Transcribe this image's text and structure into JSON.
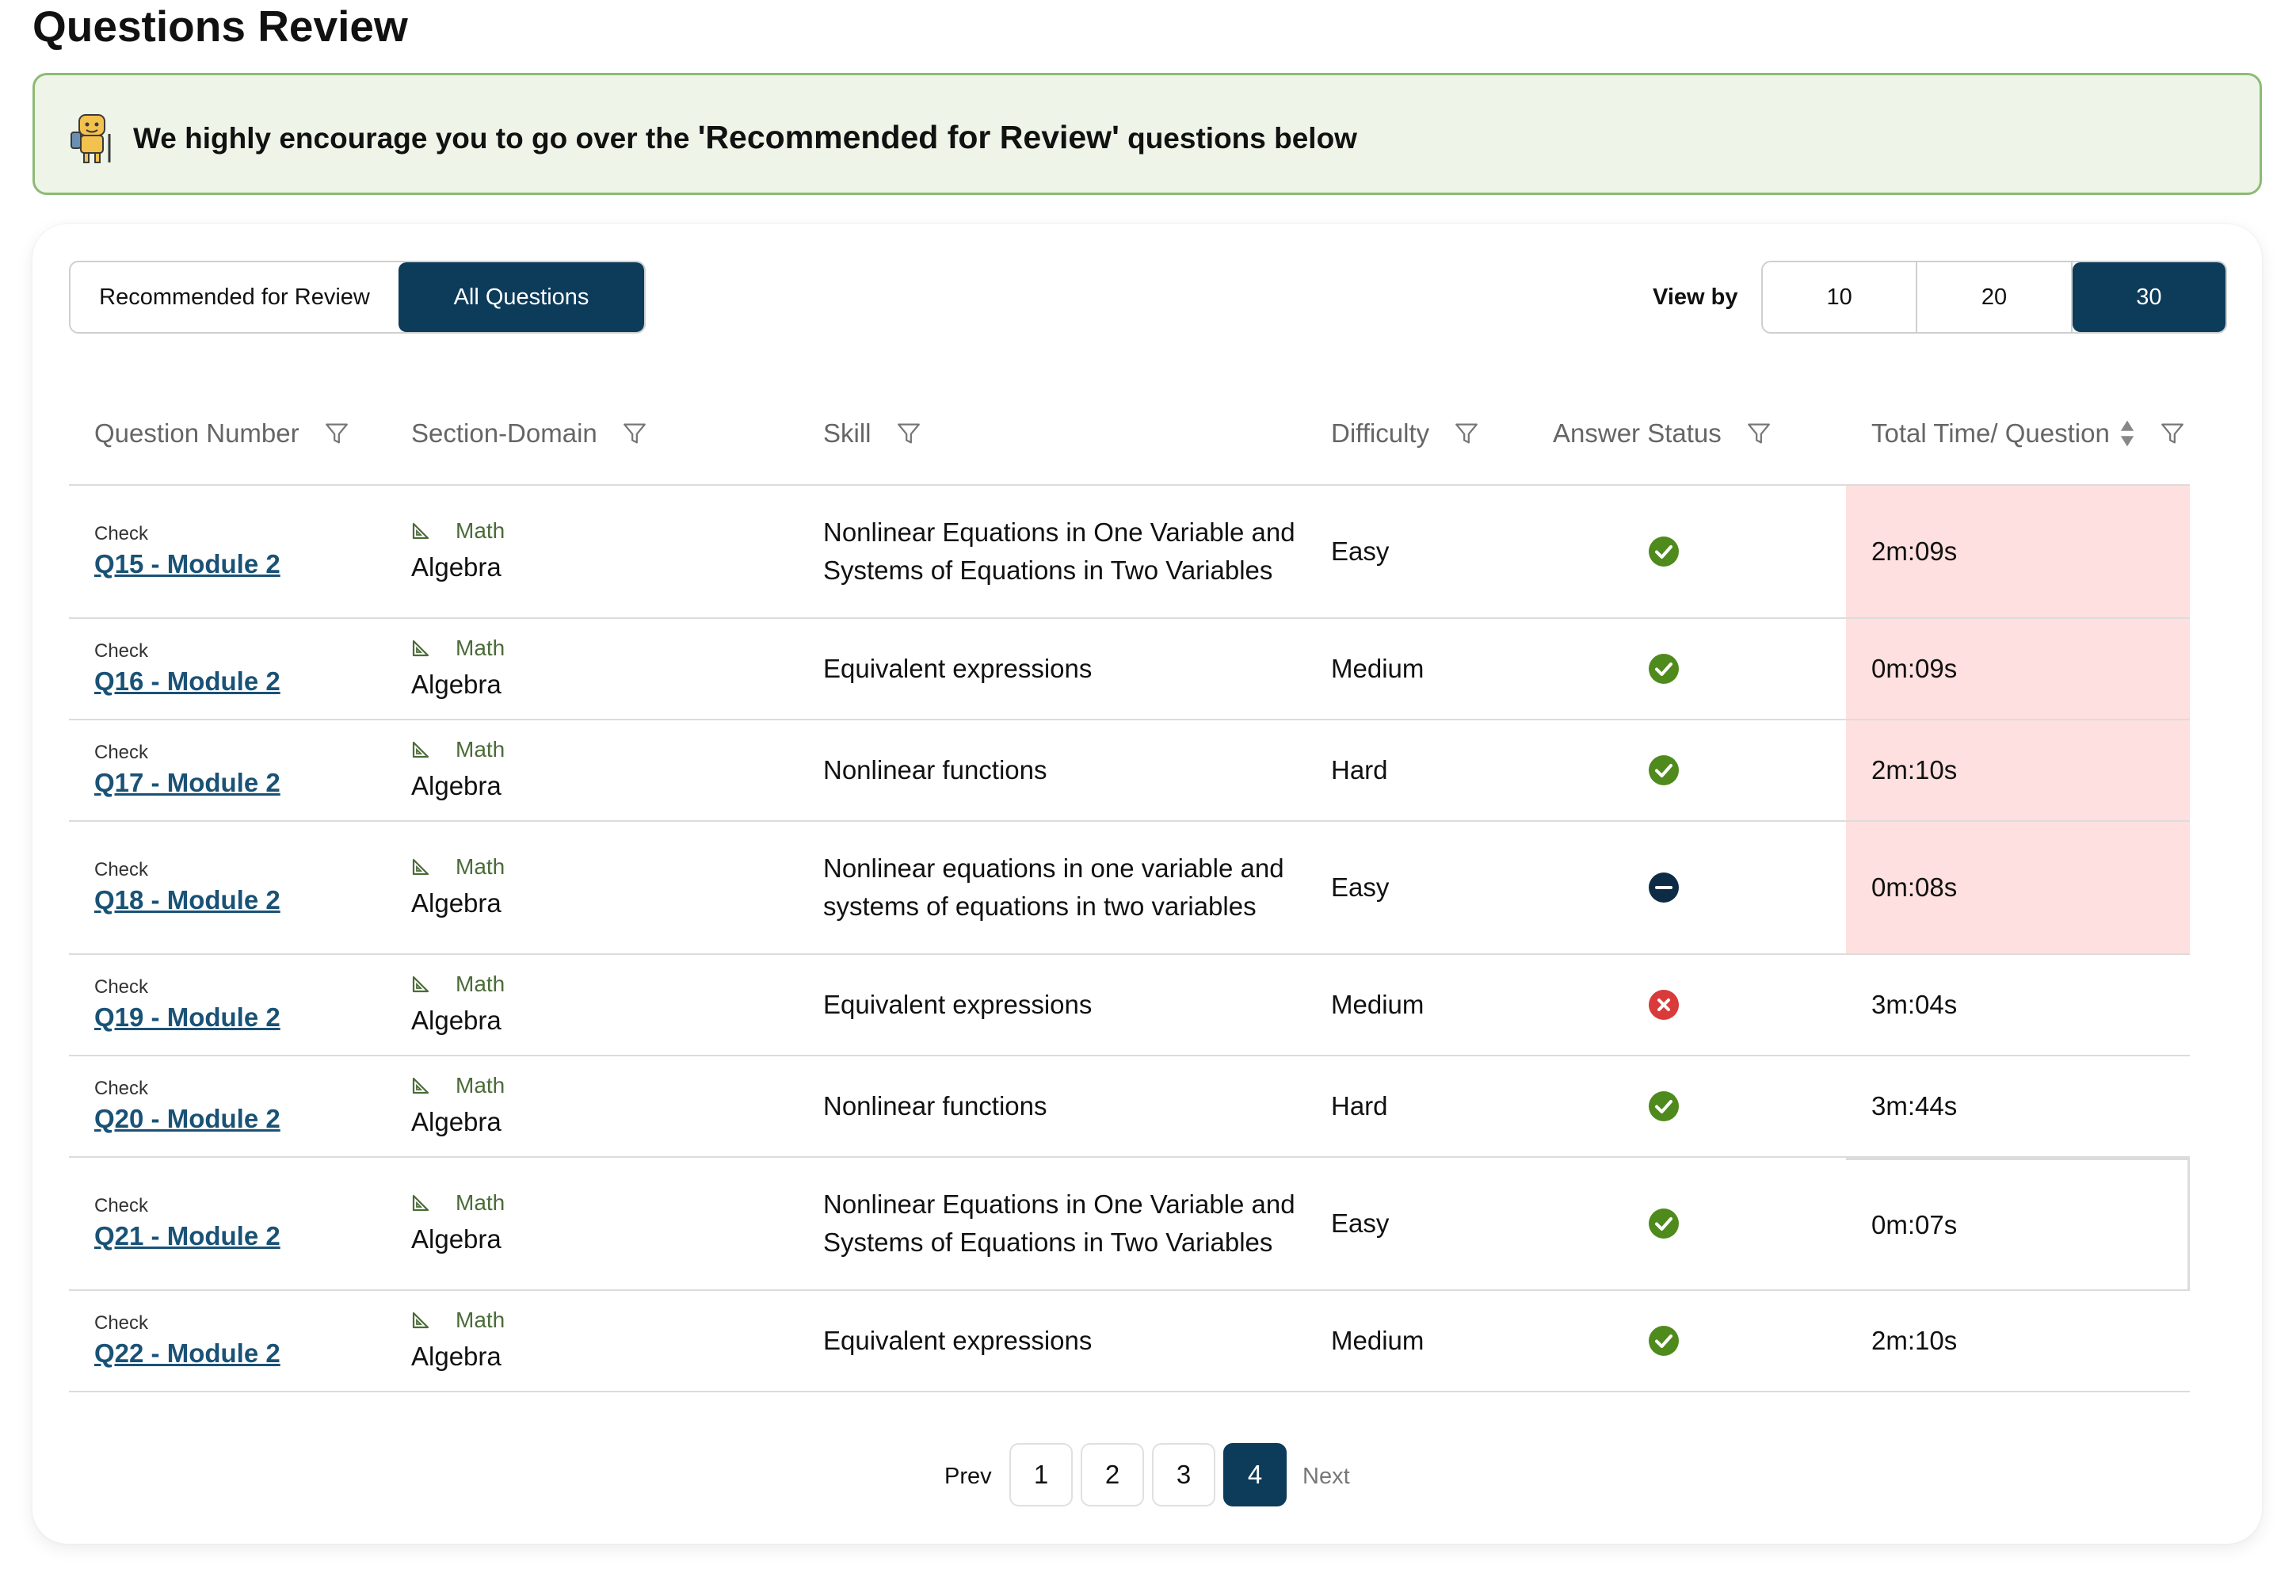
{
  "page": {
    "title": "Questions Review"
  },
  "banner": {
    "prefix": "We highly encourage you to go over the ",
    "highlight": "'Recommended for Review'",
    "suffix": " questions below",
    "icon": "mascot-icon"
  },
  "tabs": {
    "recommended": "Recommended for Review",
    "all": "All Questions",
    "active": "all"
  },
  "view_by": {
    "label": "View by",
    "options": [
      "10",
      "20",
      "30"
    ],
    "selected": "30"
  },
  "table": {
    "headers": {
      "question": "Question Number",
      "section": "Section-Domain",
      "skill": "Skill",
      "difficulty": "Difficulty",
      "status": "Answer Status",
      "time": "Total Time/ Question"
    },
    "rows": [
      {
        "check": "Check",
        "question": "Q15 - Module 2",
        "section": "Math",
        "domain": "Algebra",
        "skill": "Nonlinear Equations in One Variable and Systems of Equations in Two Variables",
        "difficulty": "Easy",
        "status": "correct",
        "time": "2m:09s",
        "highlight": true
      },
      {
        "check": "Check",
        "question": "Q16 - Module 2",
        "section": "Math",
        "domain": "Algebra",
        "skill": "Equivalent expressions",
        "difficulty": "Medium",
        "status": "correct",
        "time": "0m:09s",
        "highlight": true
      },
      {
        "check": "Check",
        "question": "Q17 - Module 2",
        "section": "Math",
        "domain": "Algebra",
        "skill": "Nonlinear functions",
        "difficulty": "Hard",
        "status": "correct",
        "time": "2m:10s",
        "highlight": true
      },
      {
        "check": "Check",
        "question": "Q18 - Module 2",
        "section": "Math",
        "domain": "Algebra",
        "skill": "Nonlinear equations in one variable and systems of equations in two variables",
        "difficulty": "Easy",
        "status": "omitted",
        "time": "0m:08s",
        "highlight": true
      },
      {
        "check": "Check",
        "question": "Q19 - Module 2",
        "section": "Math",
        "domain": "Algebra",
        "skill": "Equivalent expressions",
        "difficulty": "Medium",
        "status": "incorrect",
        "time": "3m:04s",
        "highlight": false
      },
      {
        "check": "Check",
        "question": "Q20 - Module 2",
        "section": "Math",
        "domain": "Algebra",
        "skill": "Nonlinear functions",
        "difficulty": "Hard",
        "status": "correct",
        "time": "3m:44s",
        "highlight": false
      },
      {
        "check": "Check",
        "question": "Q21 - Module 2",
        "section": "Math",
        "domain": "Algebra",
        "skill": "Nonlinear Equations in One Variable and Systems of Equations in Two Variables",
        "difficulty": "Easy",
        "status": "correct",
        "time": "0m:07s",
        "highlight": false
      },
      {
        "check": "Check",
        "question": "Q22 - Module 2",
        "section": "Math",
        "domain": "Algebra",
        "skill": "Equivalent expressions",
        "difficulty": "Medium",
        "status": "correct",
        "time": "2m:10s",
        "highlight": false
      }
    ]
  },
  "pagination": {
    "prev": "Prev",
    "next": "Next",
    "pages": [
      "1",
      "2",
      "3",
      "4"
    ],
    "current": "4"
  },
  "colors": {
    "primary": "#0d3b5a",
    "correct": "#4f8a1d",
    "incorrect": "#d93a3a",
    "omitted": "#0d2b45",
    "highlight": "#fde0df",
    "banner_bg": "#eef5e8",
    "banner_border": "#8cbb74",
    "link": "#1a5276"
  }
}
